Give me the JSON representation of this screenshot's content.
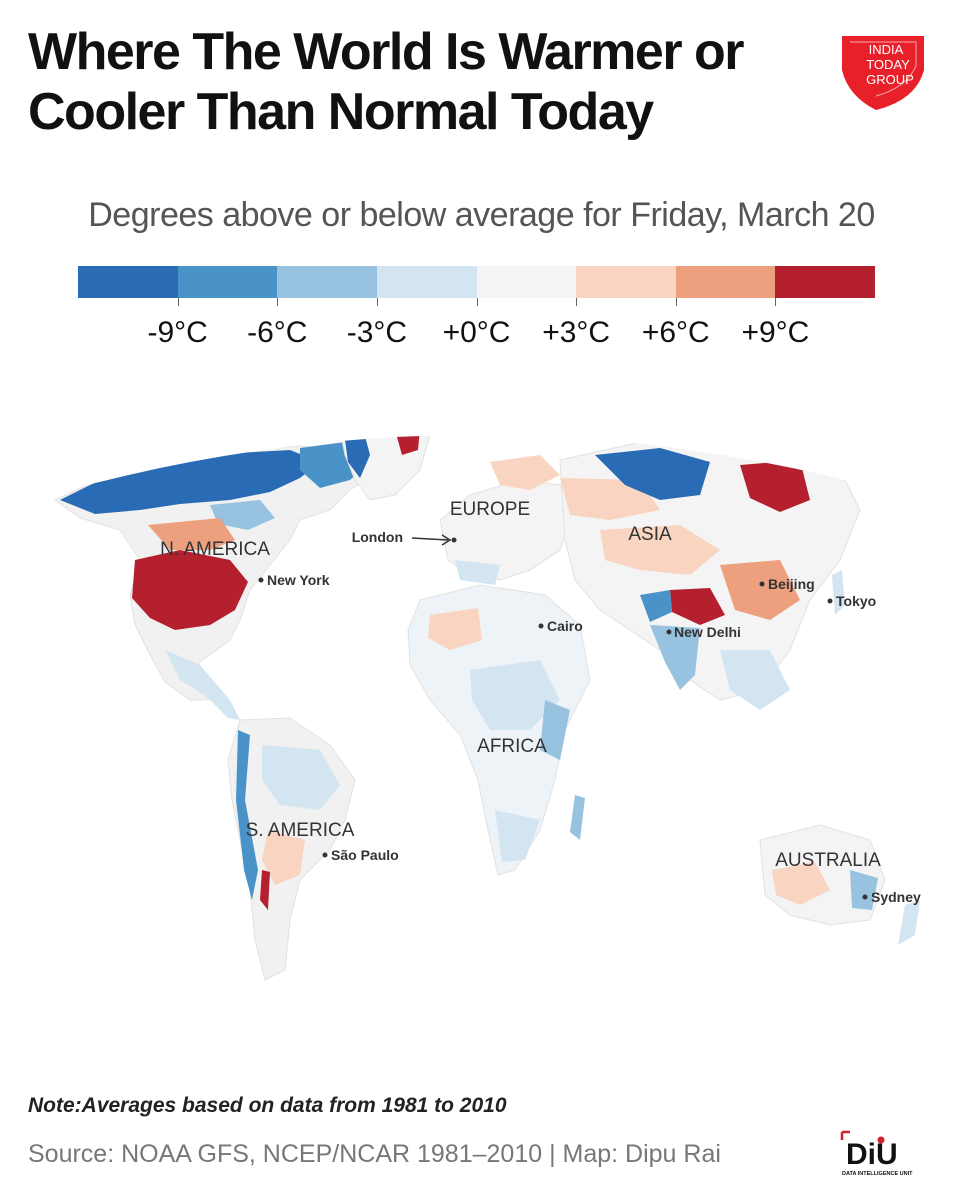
{
  "title_line1": "Where The World Is Warmer or",
  "title_line2": "Cooler Than Normal Today",
  "subtitle": "Degrees above or below average for Friday, March 20",
  "logo_text": [
    "INDIA",
    "TODAY",
    "GROUP"
  ],
  "legend": {
    "colors": [
      "#2a6bb5",
      "#4a93c9",
      "#97c3e0",
      "#d3e5f1",
      "#f4f4f4",
      "#f9d4c0",
      "#eda07e",
      "#b5202e"
    ],
    "labels": [
      "-9°C",
      "-6°C",
      "-3°C",
      "+0°C",
      "+3°C",
      "+6°C",
      "+9°C"
    ]
  },
  "continents": [
    "N. AMERICA",
    "EUROPE",
    "ASIA",
    "AFRICA",
    "S. AMERICA",
    "AUSTRALIA"
  ],
  "cities": [
    "New York",
    "London",
    "Cairo",
    "New Delhi",
    "Beijing",
    "Tokyo",
    "São Paulo",
    "Sydney"
  ],
  "note": "Note:Averages based on data from 1981 to 2010",
  "source": "Source: NOAA GFS, NCEP/NCAR 1981–2010 | Map: Dipu Rai",
  "diu_logo": {
    "text": "DiU",
    "tagline": "DATA INTELLIGENCE UNIT"
  }
}
